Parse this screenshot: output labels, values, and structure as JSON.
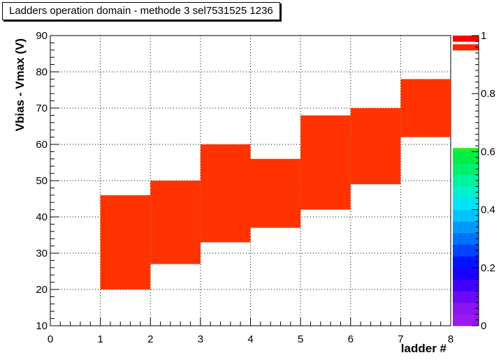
{
  "chart_data": {
    "type": "heatmap",
    "title": "Ladders operation domain - methode 3  sel7531525  1236",
    "xlabel": "ladder #",
    "ylabel": "Vbias - Vmax (V)",
    "xlim": [
      0,
      8
    ],
    "ylim": [
      10,
      90
    ],
    "x_ticks": [
      "0",
      "1",
      "2",
      "3",
      "4",
      "5",
      "6",
      "7",
      "8"
    ],
    "y_ticks": [
      "10",
      "20",
      "30",
      "40",
      "50",
      "60",
      "70",
      "80",
      "90"
    ],
    "grid": true,
    "cell_color": "#ff3300",
    "cells": [
      {
        "x0": 1,
        "x1": 2,
        "y0": 20,
        "y1": 46,
        "value": 1
      },
      {
        "x0": 2,
        "x1": 3,
        "y0": 27,
        "y1": 50,
        "value": 1
      },
      {
        "x0": 3,
        "x1": 4,
        "y0": 33,
        "y1": 60,
        "value": 1
      },
      {
        "x0": 4,
        "x1": 5,
        "y0": 37,
        "y1": 56,
        "value": 1
      },
      {
        "x0": 5,
        "x1": 6,
        "y0": 42,
        "y1": 68,
        "value": 1
      },
      {
        "x0": 6,
        "x1": 7,
        "y0": 49,
        "y1": 70,
        "value": 1
      },
      {
        "x0": 7,
        "x1": 8,
        "y0": 62,
        "y1": 78,
        "value": 1
      }
    ],
    "colorbar": {
      "range": [
        0,
        1
      ],
      "tick_labels": [
        "0",
        "0.2",
        "0.4",
        "0.6",
        "0.8",
        "1"
      ]
    }
  }
}
